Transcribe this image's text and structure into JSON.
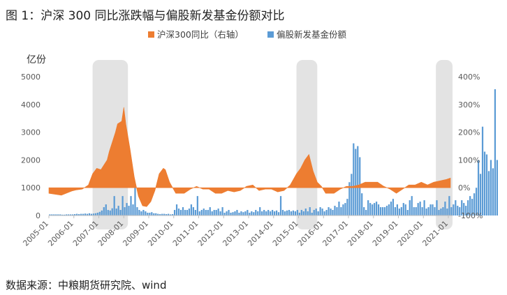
{
  "figure_title": "图 1：沪深 300 同比涨跌幅与偏股新发基金份额对比",
  "source_note": "数据来源：中粮期货研究院、wind",
  "colors": {
    "area": "#ED7D31",
    "bar": "#5B9BD5",
    "shade": "#d9d9d9"
  },
  "chart_data": {
    "type": "bar",
    "subtype": "bar+area dual-axis",
    "title": "",
    "legend": {
      "position": "top-center",
      "entries": [
        "沪深300同比（右轴）",
        "偏股新发基金份额"
      ]
    },
    "y_left": {
      "unit_label": "亿份",
      "ticks": [
        "0",
        "1000",
        "2000",
        "3000",
        "4000",
        "5000"
      ],
      "range": [
        0,
        5000
      ]
    },
    "y_right": {
      "ticks": [
        "-100%",
        "0%",
        "100%",
        "200%",
        "300%",
        "400%"
      ],
      "range_pct": [
        -100,
        400
      ]
    },
    "x_ticks": [
      "2005-01",
      "2006-01",
      "2007-01",
      "2008-01",
      "2009-01",
      "2010-01",
      "2011-01",
      "2012-01",
      "2013-01",
      "2014-01",
      "2015-01",
      "2016-01",
      "2017-01",
      "2018-01",
      "2019-01",
      "2020-01",
      "2021-01"
    ],
    "shaded_periods": [
      [
        "2006-10",
        "2008-02"
      ],
      [
        "2014-12",
        "2015-09"
      ],
      [
        "2020-07",
        "2021-02"
      ]
    ],
    "series": [
      {
        "name": "沪深300同比（右轴）",
        "axis": "right",
        "kind": "area",
        "points": [
          [
            "2005-01",
            -20
          ],
          [
            "2005-07",
            -27
          ],
          [
            "2005-12",
            -12
          ],
          [
            "2006-02",
            -8
          ],
          [
            "2006-05",
            -5
          ],
          [
            "2006-08",
            10
          ],
          [
            "2006-10",
            50
          ],
          [
            "2006-12",
            70
          ],
          [
            "2007-02",
            65
          ],
          [
            "2007-05",
            100
          ],
          [
            "2007-06",
            130
          ],
          [
            "2007-09",
            200
          ],
          [
            "2007-10",
            230
          ],
          [
            "2007-12",
            240
          ],
          [
            "2008-01",
            290
          ],
          [
            "2008-02",
            230
          ],
          [
            "2008-04",
            140
          ],
          [
            "2008-06",
            40
          ],
          [
            "2008-08",
            -30
          ],
          [
            "2008-10",
            -65
          ],
          [
            "2008-12",
            -68
          ],
          [
            "2009-02",
            -50
          ],
          [
            "2009-04",
            -10
          ],
          [
            "2009-06",
            50
          ],
          [
            "2009-08",
            70
          ],
          [
            "2009-09",
            65
          ],
          [
            "2009-11",
            20
          ],
          [
            "2010-02",
            -20
          ],
          [
            "2010-06",
            -20
          ],
          [
            "2010-09",
            -5
          ],
          [
            "2010-12",
            5
          ],
          [
            "2011-03",
            -5
          ],
          [
            "2011-06",
            -5
          ],
          [
            "2011-09",
            -20
          ],
          [
            "2011-12",
            -20
          ],
          [
            "2012-03",
            -10
          ],
          [
            "2012-06",
            -15
          ],
          [
            "2012-09",
            -10
          ],
          [
            "2012-12",
            5
          ],
          [
            "2013-03",
            10
          ],
          [
            "2013-06",
            -10
          ],
          [
            "2013-09",
            -5
          ],
          [
            "2013-12",
            -5
          ],
          [
            "2014-03",
            -15
          ],
          [
            "2014-06",
            -10
          ],
          [
            "2014-09",
            10
          ],
          [
            "2014-12",
            50
          ],
          [
            "2015-02",
            70
          ],
          [
            "2015-04",
            100
          ],
          [
            "2015-06",
            120
          ],
          [
            "2015-08",
            60
          ],
          [
            "2015-10",
            20
          ],
          [
            "2015-12",
            5
          ],
          [
            "2016-02",
            -20
          ],
          [
            "2016-06",
            -20
          ],
          [
            "2016-09",
            -5
          ],
          [
            "2016-12",
            5
          ],
          [
            "2017-03",
            5
          ],
          [
            "2017-06",
            10
          ],
          [
            "2017-09",
            20
          ],
          [
            "2017-12",
            20
          ],
          [
            "2018-03",
            20
          ],
          [
            "2018-06",
            5
          ],
          [
            "2018-09",
            -5
          ],
          [
            "2018-12",
            -20
          ],
          [
            "2019-03",
            -5
          ],
          [
            "2019-06",
            10
          ],
          [
            "2019-09",
            10
          ],
          [
            "2019-12",
            20
          ],
          [
            "2020-03",
            10
          ],
          [
            "2020-06",
            20
          ],
          [
            "2020-09",
            25
          ],
          [
            "2020-12",
            30
          ],
          [
            "2021-02",
            35
          ]
        ]
      },
      {
        "name": "偏股新发基金份额",
        "axis": "left",
        "kind": "bar",
        "values": [
          40,
          40,
          40,
          40,
          40,
          40,
          30,
          30,
          40,
          40,
          40,
          40,
          50,
          60,
          50,
          60,
          60,
          70,
          60,
          80,
          60,
          70,
          80,
          100,
          130,
          180,
          300,
          400,
          200,
          180,
          260,
          700,
          250,
          350,
          200,
          700,
          300,
          450,
          350,
          700,
          400,
          1000,
          300,
          200,
          150,
          200,
          150,
          100,
          100,
          120,
          80,
          80,
          60,
          50,
          60,
          60,
          50,
          60,
          40,
          50,
          200,
          400,
          250,
          200,
          300,
          200,
          200,
          250,
          400,
          300,
          200,
          700,
          150,
          200,
          250,
          200,
          200,
          300,
          150,
          200,
          200,
          250,
          150,
          300,
          100,
          150,
          200,
          100,
          120,
          150,
          200,
          100,
          150,
          120,
          150,
          200,
          100,
          150,
          120,
          200,
          150,
          300,
          150,
          200,
          150,
          200,
          150,
          200,
          150,
          180,
          120,
          700,
          200,
          150,
          180,
          200,
          150,
          180,
          150,
          200,
          100,
          200,
          150,
          250,
          150,
          300,
          100,
          200,
          250,
          150,
          300,
          250,
          150,
          200,
          300,
          250,
          200,
          350,
          300,
          500,
          300,
          400,
          450,
          600,
          1200,
          1500,
          2600,
          2400,
          2500,
          2100,
          800,
          300,
          200,
          550,
          450,
          400,
          450,
          500,
          400,
          300,
          300,
          300,
          350,
          400,
          500,
          600,
          300,
          400,
          250,
          300,
          450,
          400,
          200,
          550,
          700,
          300,
          300,
          450,
          500,
          300,
          550,
          250,
          300,
          400,
          400,
          300,
          550,
          200,
          250,
          300,
          500,
          250,
          700,
          300,
          400,
          550,
          350,
          300,
          550,
          450,
          350,
          550,
          700,
          600,
          800,
          1000,
          2000,
          1500,
          3200,
          2300,
          2200,
          1600,
          2000,
          1700,
          4550,
          2000
        ]
      }
    ]
  }
}
